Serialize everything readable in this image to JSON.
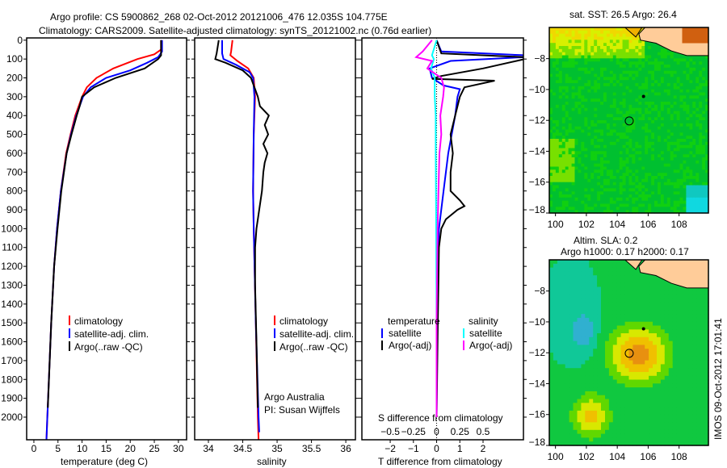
{
  "title_line1": "Argo profile: CS 5900862_268 02-Oct-2012 20121006_476 12.035S 104.775E",
  "title_line2": "Climatology: CARS2009. Satellite-adjusted climatology: synTS_20121002.nc (0.76d earlier)",
  "side_stamp": "IMOS 09-Oct-2012 17:01:41",
  "colors": {
    "climatology": "#ff0000",
    "satellite": "#0000ff",
    "argo": "#000000",
    "sat_s": "#00ffff",
    "argo_s": "#ff00ff"
  },
  "chart_data": [
    {
      "type": "line",
      "id": "temp",
      "xlabel": "temperature (deg C)",
      "ylabel": "",
      "xlim": [
        -1.5,
        31.7
      ],
      "ylim": [
        -12,
        2120
      ],
      "xticks": [
        0,
        5,
        10,
        15,
        20,
        25,
        30
      ],
      "yticks": [
        0,
        100,
        200,
        300,
        400,
        500,
        600,
        700,
        800,
        900,
        1000,
        1100,
        1200,
        1300,
        1400,
        1500,
        1600,
        1700,
        1800,
        1900,
        2000
      ],
      "legend": [
        "climatology",
        "satellite-adj. clim.",
        "Argo(..raw -QC)"
      ],
      "series": [
        {
          "name": "climatology",
          "color": "#ff0000",
          "depth": [
            0,
            50,
            75,
            100,
            150,
            200,
            250,
            300,
            400,
            500,
            600,
            800,
            1000,
            1200,
            1500,
            2000,
            2120
          ],
          "values": [
            26.4,
            26.4,
            25,
            21.5,
            16.5,
            13,
            11,
            10,
            8.6,
            7.6,
            6.7,
            5.6,
            4.8,
            4.2,
            3.6,
            2.8,
            2.6
          ]
        },
        {
          "name": "satellite-adj. clim.",
          "color": "#0000ff",
          "depth": [
            0,
            60,
            90,
            120,
            160,
            200,
            250,
            300,
            400,
            500,
            600,
            800,
            1000,
            1200,
            1500,
            2000,
            2120
          ],
          "values": [
            26.6,
            26.6,
            25.8,
            23.5,
            20,
            15,
            11.8,
            10.2,
            8.8,
            7.7,
            6.8,
            5.6,
            4.8,
            4.2,
            3.6,
            2.8,
            2.6
          ]
        },
        {
          "name": "Argo(..raw -QC)",
          "color": "#000000",
          "depth": [
            0,
            80,
            100,
            150,
            200,
            250,
            300,
            350,
            400,
            500,
            600,
            800,
            1000,
            1200,
            1500,
            1950
          ],
          "values": [
            26.4,
            26.4,
            25.8,
            23,
            17,
            12.5,
            10,
            9.5,
            8.9,
            7.8,
            6.8,
            5.7,
            4.9,
            4.2,
            3.6,
            2.9
          ]
        }
      ]
    },
    {
      "type": "line",
      "id": "sal",
      "xlabel": "salinity",
      "xlim": [
        33.8,
        36.14
      ],
      "ylim": [
        -12,
        2120
      ],
      "xticks": [
        34,
        34.5,
        35,
        35.5,
        36
      ],
      "xticklabels": [
        "34",
        "34.5",
        "35",
        "35.5",
        "36"
      ],
      "legend": [
        "climatology",
        "satellite-adj. clim.",
        "Argo(..raw -QC)"
      ],
      "annotation": [
        "Argo Australia",
        "PI: Susan Wijffels"
      ],
      "series": [
        {
          "name": "climatology",
          "color": "#ff0000",
          "depth": [
            0,
            60,
            80,
            110,
            150,
            200,
            300,
            500,
            800,
            1000,
            1500,
            2000,
            2120
          ],
          "values": [
            34.35,
            34.33,
            34.32,
            34.42,
            34.58,
            34.66,
            34.68,
            34.66,
            34.65,
            34.66,
            34.69,
            34.72,
            34.73
          ]
        },
        {
          "name": "satellite-adj. clim.",
          "color": "#0000ff",
          "depth": [
            0,
            70,
            100,
            130,
            170,
            200,
            300,
            500,
            800,
            1000,
            1500,
            2000,
            2080
          ],
          "values": [
            34.2,
            34.2,
            34.22,
            34.4,
            34.6,
            34.65,
            34.67,
            34.66,
            34.65,
            34.66,
            34.69,
            34.73,
            34.74
          ]
        },
        {
          "name": "Argo(..raw -QC)",
          "color": "#000000",
          "depth": [
            0,
            70,
            100,
            120,
            160,
            200,
            260,
            300,
            350,
            400,
            450,
            500,
            550,
            600,
            650,
            700,
            800,
            900,
            1000,
            1100,
            1300,
            1600,
            1950
          ],
          "values": [
            34.15,
            34.12,
            34.1,
            34.25,
            34.5,
            34.62,
            34.68,
            34.72,
            34.75,
            34.88,
            34.82,
            34.87,
            34.8,
            34.86,
            34.82,
            34.8,
            34.78,
            34.74,
            34.7,
            34.68,
            34.68,
            34.7,
            34.72
          ]
        }
      ]
    },
    {
      "type": "line",
      "id": "diff",
      "xlabel": "T difference from climatology",
      "x2label": "S difference from climatology",
      "xlim": [
        -3.22,
        3.74
      ],
      "ylim": [
        -12,
        2120
      ],
      "xticks": [
        -2,
        -1,
        0,
        1,
        2
      ],
      "x2ticks": [
        -0.5,
        -0.25,
        0,
        0.25,
        0.5
      ],
      "x2ticklabels": [
        "-0.5",
        "-0.25",
        "0",
        "0.25",
        "0.5"
      ],
      "legend_temperature": {
        "title": "temperature",
        "items": [
          "satellite",
          "Argo(-adj)"
        ]
      },
      "legend_salinity": {
        "title": "salinity",
        "items": [
          "satellite",
          "Argo(-adj)"
        ]
      },
      "series": [
        {
          "name": "T satellite",
          "color": "#0000ff",
          "axis": "T",
          "depth": [
            0,
            60,
            80,
            90,
            110,
            150,
            200,
            240,
            260,
            300,
            400,
            600,
            800,
            1000,
            1200,
            1500,
            2000
          ],
          "values": [
            0,
            0.2,
            3.8,
            3.8,
            0.6,
            -0.3,
            -0.2,
            0.3,
            1,
            0.9,
            0.8,
            0.5,
            0.3,
            0.1,
            0.05,
            0.02,
            0
          ]
        },
        {
          "name": "T Argo(-adj)",
          "color": "#000000",
          "axis": "T",
          "depth": [
            0,
            70,
            90,
            100,
            150,
            190,
            205,
            215,
            250,
            300,
            400,
            500,
            600,
            700,
            800,
            850,
            880,
            900,
            950,
            1000,
            1100,
            1500,
            2000
          ],
          "values": [
            0,
            0.2,
            3.8,
            3.8,
            2,
            0.2,
            -0.2,
            2.5,
            1.2,
            1,
            0.8,
            0.6,
            0.7,
            0.6,
            0.6,
            1,
            1.2,
            0.9,
            0.4,
            0.2,
            0.1,
            0.05,
            0
          ]
        },
        {
          "name": "S satellite",
          "color": "#00ffff",
          "axis": "S",
          "depth": [
            0,
            80,
            100,
            150,
            200,
            300,
            400,
            600,
            1000,
            1500,
            2000
          ],
          "values": [
            0,
            -0.05,
            -0.03,
            -0.06,
            -0.02,
            -0.02,
            -0.01,
            -0.01,
            -0.005,
            0,
            0
          ]
        },
        {
          "name": "S Argo(-adj)",
          "color": "#ff00ff",
          "axis": "S",
          "depth": [
            0,
            60,
            90,
            110,
            150,
            200,
            250,
            300,
            400,
            500,
            600,
            800,
            1000,
            1500,
            2000
          ],
          "values": [
            -0.05,
            -0.15,
            -0.22,
            -0.05,
            -0.1,
            0.05,
            0.08,
            0.07,
            0.04,
            0.05,
            0.03,
            0.02,
            0.01,
            0,
            0
          ]
        }
      ]
    },
    {
      "type": "heatmap",
      "id": "sst",
      "title": "sat. SST: 26.5 Argo: 26.4",
      "xlim": [
        99.6,
        109.9
      ],
      "ylim": [
        -18,
        -5.98
      ],
      "xticks": [
        100,
        102,
        104,
        106,
        108
      ],
      "yticks": [
        -8,
        -10,
        -12,
        -14,
        -16,
        -18
      ],
      "argo_position": [
        104.775,
        -12.035
      ]
    },
    {
      "type": "heatmap",
      "id": "sla",
      "title": "Altim. SLA: 0.2",
      "subtitle": "Argo h1000: 0.17 h2000: 0.17",
      "xlim": [
        99.6,
        109.9
      ],
      "ylim": [
        -18,
        -5.98
      ],
      "xticks": [
        100,
        102,
        104,
        106,
        108
      ],
      "yticks": [
        -8,
        -10,
        -12,
        -14,
        -16,
        -18
      ],
      "argo_position": [
        104.775,
        -12.035
      ]
    }
  ]
}
